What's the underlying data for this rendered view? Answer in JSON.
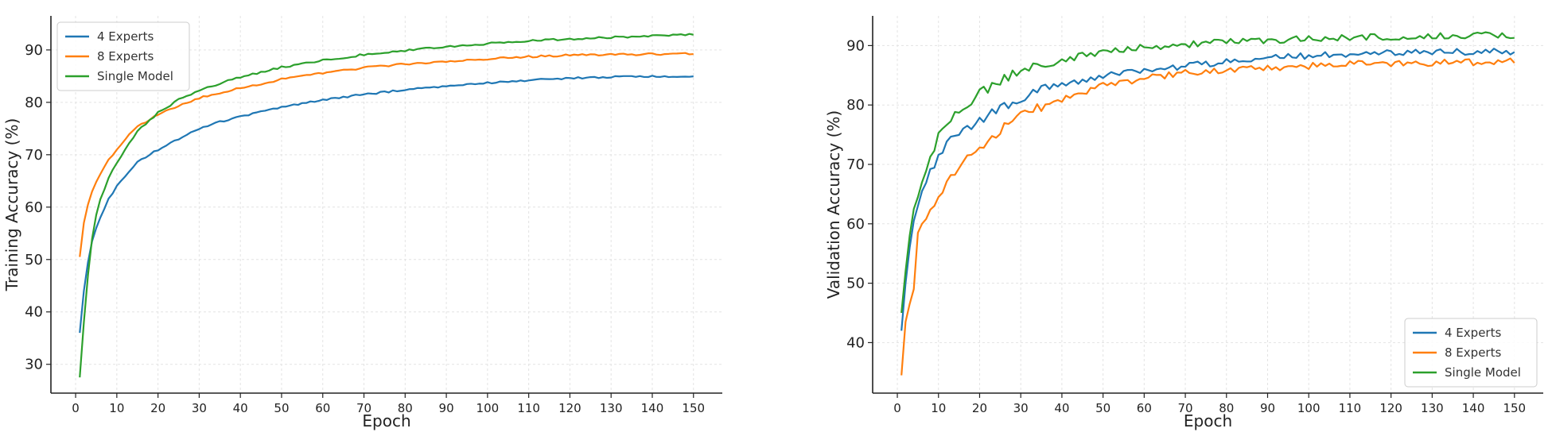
{
  "chart_data": [
    {
      "type": "line",
      "title": "",
      "xlabel": "Epoch",
      "ylabel": "Training Accuracy (%)",
      "xlim": [
        -6,
        157
      ],
      "ylim": [
        24.5,
        96.5
      ],
      "xticks": [
        0,
        10,
        20,
        30,
        40,
        50,
        60,
        70,
        80,
        90,
        100,
        110,
        120,
        130,
        140,
        150
      ],
      "yticks": [
        30,
        40,
        50,
        60,
        70,
        80,
        90
      ],
      "grid": true,
      "legend_position": "upper-left",
      "x_range": [
        1,
        150
      ],
      "series": [
        {
          "name": "4 Experts",
          "color": "#1f77b4",
          "x": [
            1,
            2,
            3,
            4,
            5,
            6,
            8,
            10,
            12,
            15,
            20,
            25,
            30,
            35,
            40,
            50,
            60,
            70,
            80,
            90,
            100,
            110,
            120,
            130,
            140,
            150
          ],
          "y": [
            36.0,
            44.0,
            49.5,
            53.5,
            56.0,
            58.0,
            61.5,
            64.0,
            66.0,
            68.5,
            71.0,
            73.0,
            75.0,
            76.3,
            77.3,
            79.0,
            80.5,
            81.5,
            82.4,
            83.1,
            83.7,
            84.2,
            84.6,
            84.8,
            85.0,
            84.9
          ]
        },
        {
          "name": "8 Experts",
          "color": "#ff7f0e",
          "x": [
            1,
            2,
            3,
            4,
            5,
            6,
            8,
            10,
            12,
            15,
            20,
            25,
            30,
            35,
            40,
            50,
            60,
            70,
            80,
            90,
            100,
            110,
            120,
            130,
            140,
            150
          ],
          "y": [
            50.5,
            57.0,
            60.5,
            63.0,
            64.8,
            66.3,
            69.0,
            71.0,
            73.0,
            75.3,
            77.6,
            79.4,
            80.8,
            81.8,
            82.7,
            84.4,
            85.6,
            86.6,
            87.3,
            87.8,
            88.3,
            88.7,
            89.0,
            89.1,
            89.2,
            89.3
          ]
        },
        {
          "name": "Single Model",
          "color": "#2ca02c",
          "x": [
            1,
            2,
            3,
            4,
            5,
            6,
            8,
            10,
            12,
            15,
            20,
            25,
            30,
            35,
            40,
            50,
            60,
            70,
            80,
            90,
            100,
            110,
            120,
            130,
            140,
            150
          ],
          "y": [
            27.5,
            38.0,
            47.0,
            54.0,
            58.5,
            61.5,
            65.5,
            68.5,
            71.0,
            74.5,
            78.0,
            80.5,
            82.3,
            83.6,
            84.8,
            86.7,
            88.0,
            89.1,
            89.9,
            90.6,
            91.2,
            91.7,
            92.1,
            92.4,
            92.7,
            92.9
          ]
        }
      ]
    },
    {
      "type": "line",
      "title": "",
      "xlabel": "Epoch",
      "ylabel": "Validation Accuracy (%)",
      "xlim": [
        -6,
        157
      ],
      "ylim": [
        31.5,
        95
      ],
      "xticks": [
        0,
        10,
        20,
        30,
        40,
        50,
        60,
        70,
        80,
        90,
        100,
        110,
        120,
        130,
        140,
        150
      ],
      "yticks": [
        40,
        50,
        60,
        70,
        80,
        90
      ],
      "grid": true,
      "legend_position": "lower-right",
      "x_range": [
        1,
        150
      ],
      "series": [
        {
          "name": "4 Experts",
          "color": "#1f77b4",
          "x": [
            1,
            2,
            3,
            4,
            5,
            6,
            8,
            10,
            12,
            15,
            18,
            20,
            25,
            30,
            35,
            40,
            50,
            60,
            70,
            80,
            90,
            100,
            110,
            120,
            130,
            140,
            150
          ],
          "y": [
            42.0,
            50.0,
            56.0,
            60.5,
            63.0,
            65.5,
            68.5,
            71.5,
            73.2,
            75.0,
            76.8,
            77.6,
            79.6,
            81.2,
            82.4,
            83.3,
            84.8,
            85.8,
            86.6,
            87.3,
            87.9,
            88.3,
            88.6,
            88.8,
            88.9,
            89.0,
            89.0
          ]
        },
        {
          "name": "8 Experts",
          "color": "#ff7f0e",
          "x": [
            1,
            2,
            3,
            4,
            5,
            6,
            8,
            10,
            12,
            15,
            18,
            20,
            25,
            30,
            35,
            40,
            50,
            60,
            70,
            80,
            90,
            100,
            110,
            120,
            130,
            140,
            150
          ],
          "y": [
            34.5,
            43.5,
            46.5,
            49.0,
            58.5,
            60.0,
            62.5,
            64.5,
            67.0,
            69.5,
            71.5,
            72.8,
            75.8,
            78.0,
            79.8,
            81.0,
            83.2,
            84.5,
            85.4,
            85.9,
            86.3,
            86.6,
            86.9,
            87.0,
            87.1,
            87.2,
            87.3
          ]
        },
        {
          "name": "Single Model",
          "color": "#2ca02c",
          "x": [
            1,
            2,
            3,
            4,
            5,
            6,
            8,
            10,
            12,
            15,
            18,
            20,
            25,
            30,
            35,
            40,
            50,
            60,
            70,
            80,
            90,
            100,
            110,
            120,
            130,
            140,
            150
          ],
          "y": [
            45.0,
            52.0,
            58.0,
            62.5,
            64.5,
            67.0,
            70.5,
            74.5,
            76.8,
            79.0,
            80.8,
            81.8,
            84.2,
            85.6,
            86.8,
            87.7,
            88.9,
            89.7,
            90.2,
            90.6,
            90.9,
            91.2,
            91.4,
            91.5,
            91.6,
            91.7,
            91.8
          ]
        }
      ]
    }
  ]
}
